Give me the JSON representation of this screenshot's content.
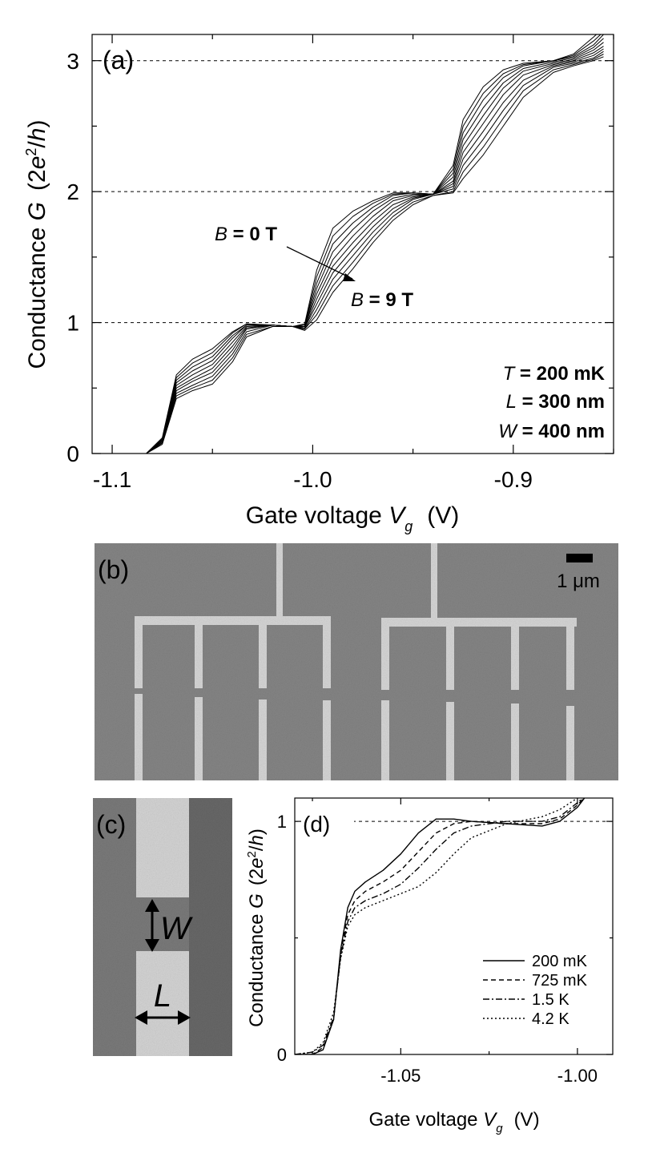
{
  "figure": {
    "panel_a": {
      "label": "(a)",
      "xlabel_main": "Gate voltage ",
      "xlabel_var": "V",
      "xlabel_sub": "g",
      "xlabel_unit": "(V)",
      "ylabel_main": "Conductance ",
      "ylabel_var": "G",
      "ylabel_unit_open": "(2",
      "ylabel_unit_e": "e",
      "ylabel_unit_sup": "2",
      "ylabel_unit_slash": "/",
      "ylabel_unit_h": "h",
      "ylabel_unit_close": ")",
      "annotation_b0_var": "B",
      "annotation_b0_val": " = 0 T",
      "annotation_b9_var": "B",
      "annotation_b9_val": " = 9 T",
      "params": [
        {
          "var": "T",
          "val": " = 200 mK"
        },
        {
          "var": "L",
          "val": " = 300 nm"
        },
        {
          "var": "W",
          "val": " = 400 nm"
        }
      ]
    },
    "panel_b": {
      "label": "(b)",
      "scale_bar_label": "1 μm"
    },
    "panel_c": {
      "label": "(c)",
      "w_label": "W",
      "l_label": "L"
    },
    "panel_d": {
      "label": "(d)",
      "xlabel_main": "Gate voltage ",
      "xlabel_var": "V",
      "xlabel_sub": "g",
      "xlabel_unit": "(V)",
      "ylabel_main": "Conductance ",
      "ylabel_var": "G",
      "ylabel_unit_open": "(2",
      "ylabel_unit_e": "e",
      "ylabel_unit_sup": "2",
      "ylabel_unit_slash": "/",
      "ylabel_unit_h": "h",
      "ylabel_unit_close": ")"
    }
  },
  "chart_data": [
    {
      "id": "a",
      "type": "line",
      "xlim": [
        -1.11,
        -0.85
      ],
      "ylim": [
        0,
        3.2
      ],
      "xticks": [
        -1.1,
        -1.0,
        -0.9
      ],
      "xtick_labels": [
        "-1.1",
        "-1.0",
        "-0.9"
      ],
      "yticks": [
        0,
        1,
        2,
        3
      ],
      "ytick_labels": [
        "0",
        "1",
        "2",
        "3"
      ],
      "hlines": [
        1,
        2,
        3
      ],
      "series_note": "B = 0 T to 9 T, 10 traces",
      "series": [
        {
          "name": "B=0T",
          "x": [
            -1.083,
            -1.075,
            -1.068,
            -1.06,
            -1.05,
            -1.04,
            -1.033,
            -1.02,
            -1.01,
            -1.004,
            -0.998,
            -0.99,
            -0.98,
            -0.97,
            -0.96,
            -0.95,
            -0.94,
            -0.93,
            -0.925,
            -0.915,
            -0.905,
            -0.895,
            -0.88,
            -0.87,
            -0.86,
            -0.855
          ],
          "y": [
            0,
            0.12,
            0.6,
            0.72,
            0.8,
            0.93,
            0.99,
            0.98,
            0.97,
            0.99,
            1.4,
            1.72,
            1.85,
            1.93,
            1.99,
            1.99,
            1.98,
            2.2,
            2.55,
            2.8,
            2.93,
            2.98,
            3.0,
            3.05,
            3.18,
            3.25
          ]
        },
        {
          "name": "B=1T",
          "x": [
            -1.083,
            -1.075,
            -1.068,
            -1.06,
            -1.05,
            -1.04,
            -1.033,
            -1.02,
            -1.01,
            -1.004,
            -0.998,
            -0.99,
            -0.98,
            -0.97,
            -0.96,
            -0.95,
            -0.94,
            -0.93,
            -0.925,
            -0.915,
            -0.905,
            -0.895,
            -0.88,
            -0.87,
            -0.86,
            -0.855
          ],
          "y": [
            0,
            0.11,
            0.58,
            0.69,
            0.77,
            0.92,
            0.99,
            0.98,
            0.97,
            0.98,
            1.35,
            1.66,
            1.81,
            1.91,
            1.98,
            1.99,
            1.98,
            2.17,
            2.5,
            2.75,
            2.9,
            2.97,
            3.0,
            3.04,
            3.15,
            3.22
          ]
        },
        {
          "name": "B=2T",
          "x": [
            -1.083,
            -1.075,
            -1.068,
            -1.06,
            -1.05,
            -1.04,
            -1.033,
            -1.02,
            -1.01,
            -1.004,
            -0.998,
            -0.99,
            -0.98,
            -0.97,
            -0.96,
            -0.95,
            -0.94,
            -0.93,
            -0.925,
            -0.915,
            -0.905,
            -0.895,
            -0.88,
            -0.87,
            -0.86,
            -0.855
          ],
          "y": [
            0,
            0.11,
            0.56,
            0.66,
            0.74,
            0.9,
            0.98,
            0.98,
            0.97,
            0.98,
            1.3,
            1.6,
            1.76,
            1.88,
            1.97,
            1.99,
            1.98,
            2.14,
            2.45,
            2.7,
            2.87,
            2.96,
            3.0,
            3.03,
            3.12,
            3.2
          ]
        },
        {
          "name": "B=3T",
          "x": [
            -1.083,
            -1.075,
            -1.068,
            -1.06,
            -1.05,
            -1.04,
            -1.033,
            -1.02,
            -1.01,
            -1.004,
            -0.998,
            -0.99,
            -0.98,
            -0.97,
            -0.96,
            -0.95,
            -0.94,
            -0.93,
            -0.925,
            -0.915,
            -0.905,
            -0.895,
            -0.88,
            -0.87,
            -0.86,
            -0.855
          ],
          "y": [
            0,
            0.1,
            0.54,
            0.63,
            0.71,
            0.88,
            0.98,
            0.98,
            0.97,
            0.97,
            1.26,
            1.54,
            1.71,
            1.85,
            1.95,
            1.98,
            1.98,
            2.11,
            2.4,
            2.64,
            2.83,
            2.94,
            2.99,
            3.02,
            3.1,
            3.17
          ]
        },
        {
          "name": "B=4T",
          "x": [
            -1.083,
            -1.075,
            -1.068,
            -1.06,
            -1.05,
            -1.04,
            -1.033,
            -1.02,
            -1.01,
            -1.004,
            -0.998,
            -0.99,
            -0.98,
            -0.97,
            -0.96,
            -0.95,
            -0.94,
            -0.93,
            -0.925,
            -0.915,
            -0.905,
            -0.895,
            -0.88,
            -0.87,
            -0.86,
            -0.855
          ],
          "y": [
            0,
            0.1,
            0.52,
            0.6,
            0.68,
            0.85,
            0.97,
            0.98,
            0.97,
            0.97,
            1.22,
            1.48,
            1.66,
            1.81,
            1.93,
            1.97,
            1.98,
            2.08,
            2.35,
            2.58,
            2.79,
            2.92,
            2.98,
            3.01,
            3.08,
            3.14
          ]
        },
        {
          "name": "B=5T",
          "x": [
            -1.083,
            -1.075,
            -1.068,
            -1.06,
            -1.05,
            -1.04,
            -1.033,
            -1.02,
            -1.01,
            -1.004,
            -0.998,
            -0.99,
            -0.98,
            -0.97,
            -0.96,
            -0.95,
            -0.94,
            -0.93,
            -0.925,
            -0.915,
            -0.905,
            -0.895,
            -0.88,
            -0.87,
            -0.86,
            -0.855
          ],
          "y": [
            0,
            0.09,
            0.5,
            0.57,
            0.65,
            0.82,
            0.96,
            0.98,
            0.97,
            0.96,
            1.18,
            1.43,
            1.61,
            1.77,
            1.9,
            1.96,
            1.98,
            2.06,
            2.3,
            2.52,
            2.74,
            2.89,
            2.97,
            3.0,
            3.06,
            3.11
          ]
        },
        {
          "name": "B=6T",
          "x": [
            -1.083,
            -1.075,
            -1.068,
            -1.06,
            -1.05,
            -1.04,
            -1.033,
            -1.02,
            -1.01,
            -1.004,
            -0.998,
            -0.99,
            -0.98,
            -0.97,
            -0.96,
            -0.95,
            -0.94,
            -0.93,
            -0.925,
            -0.915,
            -0.905,
            -0.895,
            -0.88,
            -0.87,
            -0.86,
            -0.855
          ],
          "y": [
            0,
            0.09,
            0.48,
            0.55,
            0.62,
            0.79,
            0.95,
            0.98,
            0.97,
            0.96,
            1.14,
            1.38,
            1.56,
            1.73,
            1.87,
            1.95,
            1.98,
            2.04,
            2.25,
            2.46,
            2.68,
            2.85,
            2.96,
            2.99,
            3.04,
            3.09
          ]
        },
        {
          "name": "B=7T",
          "x": [
            -1.083,
            -1.075,
            -1.068,
            -1.06,
            -1.05,
            -1.04,
            -1.033,
            -1.02,
            -1.01,
            -1.004,
            -0.998,
            -0.99,
            -0.98,
            -0.97,
            -0.96,
            -0.95,
            -0.94,
            -0.93,
            -0.925,
            -0.915,
            -0.905,
            -0.895,
            -0.88,
            -0.87,
            -0.86,
            -0.855
          ],
          "y": [
            0,
            0.08,
            0.46,
            0.52,
            0.59,
            0.76,
            0.93,
            0.98,
            0.97,
            0.95,
            1.1,
            1.33,
            1.51,
            1.69,
            1.84,
            1.94,
            1.98,
            2.02,
            2.2,
            2.4,
            2.62,
            2.81,
            2.95,
            2.98,
            3.02,
            3.07
          ]
        },
        {
          "name": "B=8T",
          "x": [
            -1.083,
            -1.075,
            -1.068,
            -1.06,
            -1.05,
            -1.04,
            -1.033,
            -1.02,
            -1.01,
            -1.004,
            -0.998,
            -0.99,
            -0.98,
            -0.97,
            -0.96,
            -0.95,
            -0.94,
            -0.93,
            -0.925,
            -0.915,
            -0.905,
            -0.895,
            -0.88,
            -0.87,
            -0.86,
            -0.855
          ],
          "y": [
            0,
            0.08,
            0.44,
            0.5,
            0.56,
            0.73,
            0.91,
            0.97,
            0.97,
            0.95,
            1.06,
            1.28,
            1.46,
            1.65,
            1.81,
            1.92,
            1.97,
            2.0,
            2.15,
            2.34,
            2.56,
            2.77,
            2.93,
            2.97,
            3.01,
            3.05
          ]
        },
        {
          "name": "B=9T",
          "x": [
            -1.083,
            -1.075,
            -1.068,
            -1.06,
            -1.05,
            -1.04,
            -1.033,
            -1.02,
            -1.01,
            -1.004,
            -0.998,
            -0.99,
            -0.98,
            -0.97,
            -0.96,
            -0.95,
            -0.94,
            -0.93,
            -0.925,
            -0.915,
            -0.905,
            -0.895,
            -0.88,
            -0.87,
            -0.86,
            -0.855
          ],
          "y": [
            0,
            0.07,
            0.42,
            0.48,
            0.53,
            0.7,
            0.89,
            0.97,
            0.97,
            0.94,
            1.02,
            1.23,
            1.41,
            1.61,
            1.78,
            1.9,
            1.97,
            1.99,
            2.1,
            2.28,
            2.5,
            2.72,
            2.91,
            2.96,
            3.0,
            3.03
          ]
        }
      ]
    },
    {
      "id": "d",
      "type": "line",
      "xlim": [
        -1.08,
        -0.99
      ],
      "ylim": [
        0,
        1.1
      ],
      "xticks": [
        -1.05,
        -1.0
      ],
      "xtick_labels": [
        "-1.05",
        "-1.00"
      ],
      "yticks": [
        0,
        1
      ],
      "ytick_labels": [
        "0",
        "1"
      ],
      "hlines": [
        1
      ],
      "legend_position": "lower-right",
      "series": [
        {
          "name": "200 mK",
          "dash": "solid",
          "x": [
            -1.08,
            -1.075,
            -1.072,
            -1.069,
            -1.067,
            -1.065,
            -1.063,
            -1.06,
            -1.055,
            -1.05,
            -1.045,
            -1.04,
            -1.035,
            -1.03,
            -1.02,
            -1.01,
            -1.005,
            -1.0,
            -0.997
          ],
          "y": [
            0,
            0,
            0.02,
            0.15,
            0.45,
            0.63,
            0.7,
            0.74,
            0.79,
            0.86,
            0.95,
            1.01,
            1.01,
            1.0,
            0.99,
            0.98,
            1.0,
            1.06,
            1.12
          ]
        },
        {
          "name": "725 mK",
          "dash": "dashed",
          "x": [
            -1.08,
            -1.075,
            -1.072,
            -1.069,
            -1.067,
            -1.065,
            -1.063,
            -1.06,
            -1.055,
            -1.05,
            -1.045,
            -1.04,
            -1.035,
            -1.03,
            -1.02,
            -1.01,
            -1.005,
            -1.0,
            -0.997
          ],
          "y": [
            0,
            0,
            0.03,
            0.15,
            0.43,
            0.6,
            0.66,
            0.7,
            0.74,
            0.79,
            0.87,
            0.95,
            0.99,
            1.0,
            0.99,
            0.99,
            1.01,
            1.07,
            1.12
          ]
        },
        {
          "name": "1.5 K",
          "dash": "dashdot",
          "x": [
            -1.08,
            -1.075,
            -1.072,
            -1.069,
            -1.067,
            -1.065,
            -1.063,
            -1.06,
            -1.055,
            -1.05,
            -1.045,
            -1.04,
            -1.035,
            -1.03,
            -1.02,
            -1.01,
            -1.005,
            -1.0,
            -0.997
          ],
          "y": [
            0,
            0.01,
            0.04,
            0.16,
            0.42,
            0.57,
            0.63,
            0.66,
            0.69,
            0.73,
            0.8,
            0.88,
            0.95,
            0.98,
            1.0,
            1.0,
            1.02,
            1.08,
            1.12
          ]
        },
        {
          "name": "4.2 K",
          "dash": "dotted",
          "x": [
            -1.08,
            -1.075,
            -1.072,
            -1.069,
            -1.067,
            -1.065,
            -1.063,
            -1.06,
            -1.055,
            -1.05,
            -1.045,
            -1.04,
            -1.035,
            -1.03,
            -1.02,
            -1.01,
            -1.005,
            -1.0,
            -0.997
          ],
          "y": [
            0,
            0.01,
            0.05,
            0.18,
            0.41,
            0.55,
            0.6,
            0.63,
            0.66,
            0.69,
            0.72,
            0.78,
            0.86,
            0.93,
            0.99,
            1.02,
            1.05,
            1.1,
            1.13
          ]
        }
      ]
    }
  ]
}
